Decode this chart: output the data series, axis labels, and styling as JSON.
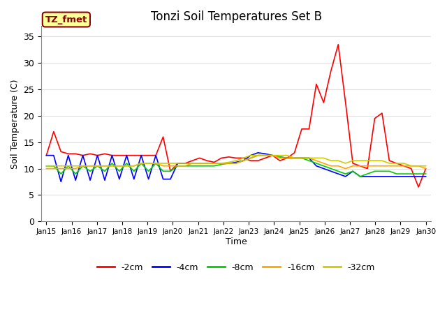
{
  "title": "Tonzi Soil Temperatures Set B",
  "xlabel": "Time",
  "ylabel": "Soil Temperature (C)",
  "annotation_text": "TZ_fmet",
  "annotation_color": "#8B0000",
  "annotation_bg": "#FFFF99",
  "ylim": [
    0,
    37
  ],
  "yticks": [
    0,
    5,
    10,
    15,
    20,
    25,
    30,
    35
  ],
  "bg_color": "#ffffff",
  "plot_bg": "#ffffff",
  "grid_color": "#E0E0E0",
  "series_colors": {
    "-2cm": "#FF0000",
    "-4cm": "#0000FF",
    "-8cm": "#00CC00",
    "-16cm": "#FFA500",
    "-32cm": "#CCCC00"
  },
  "xtick_labels": [
    "Jan 15",
    "Jan 16",
    "Jan 17",
    "Jan 18",
    "Jan 19",
    "Jan 20",
    "Jan 21",
    "Jan 22",
    "Jan 23",
    "Jan 24",
    "Jan 25",
    "Jan 26",
    "Jan 27",
    "Jan 28",
    "Jan 29",
    "Jan 30"
  ],
  "x_positions": [
    0,
    1,
    2,
    3,
    4,
    5,
    6,
    7,
    8,
    9,
    10,
    11,
    12,
    13,
    14,
    15
  ],
  "data": {
    "-2cm": [
      12.5,
      17.0,
      13.2,
      12.8,
      12.8,
      12.5,
      12.8,
      12.5,
      12.8,
      12.5,
      12.5,
      12.5,
      12.5,
      12.5,
      12.5,
      12.5,
      16.0,
      9.5,
      11.0,
      11.0,
      11.5,
      12.0,
      11.5,
      11.2,
      12.0,
      12.2,
      12.0,
      12.0,
      11.5,
      11.5,
      12.0,
      12.5,
      11.5,
      12.0,
      13.0,
      17.5,
      17.5,
      26.0,
      22.5,
      28.5,
      33.5,
      22.5,
      11.0,
      10.5,
      10.0,
      19.5,
      20.5,
      11.5,
      11.0,
      10.5,
      10.0,
      6.5,
      10.0
    ],
    "-4cm": [
      12.5,
      12.5,
      7.5,
      12.5,
      7.8,
      12.5,
      7.8,
      12.5,
      7.8,
      12.5,
      8.0,
      12.5,
      8.0,
      12.5,
      8.0,
      12.5,
      8.0,
      8.0,
      11.0,
      11.0,
      11.0,
      11.0,
      11.0,
      11.0,
      11.0,
      11.0,
      11.2,
      11.5,
      12.5,
      13.0,
      12.8,
      12.5,
      12.2,
      12.0,
      12.0,
      12.0,
      12.0,
      10.5,
      10.0,
      9.5,
      9.0,
      8.5,
      9.5,
      8.5,
      8.5,
      8.5,
      8.5,
      8.5,
      8.5,
      8.5,
      8.5,
      8.5,
      8.5
    ],
    "-8cm": [
      10.5,
      10.5,
      9.0,
      10.5,
      9.0,
      10.5,
      9.5,
      10.5,
      9.5,
      11.0,
      9.5,
      11.0,
      9.5,
      11.0,
      9.5,
      11.0,
      9.5,
      9.5,
      10.5,
      10.5,
      10.5,
      10.5,
      10.5,
      10.5,
      10.8,
      11.0,
      11.0,
      11.5,
      12.0,
      12.5,
      12.5,
      12.5,
      12.2,
      12.0,
      12.0,
      12.0,
      11.5,
      11.0,
      10.5,
      10.0,
      9.5,
      9.0,
      9.5,
      8.5,
      9.0,
      9.5,
      9.5,
      9.5,
      9.0,
      9.0,
      9.0,
      9.0,
      9.0
    ],
    "-16cm": [
      10.0,
      10.0,
      10.0,
      10.0,
      10.0,
      10.5,
      10.5,
      10.5,
      10.5,
      10.5,
      10.5,
      10.5,
      10.5,
      11.0,
      11.0,
      11.0,
      10.5,
      10.5,
      10.5,
      10.5,
      11.0,
      11.0,
      11.0,
      11.0,
      11.0,
      11.0,
      11.0,
      11.5,
      12.0,
      12.5,
      12.5,
      12.5,
      12.0,
      12.0,
      12.0,
      12.0,
      12.0,
      11.5,
      11.0,
      10.5,
      10.5,
      10.0,
      10.5,
      10.5,
      10.5,
      10.5,
      10.5,
      10.5,
      10.5,
      10.5,
      10.5,
      10.5,
      10.0
    ],
    "-32cm": [
      10.5,
      10.5,
      10.5,
      10.5,
      10.5,
      10.5,
      10.5,
      10.5,
      10.5,
      10.5,
      10.5,
      10.5,
      10.5,
      11.0,
      11.0,
      11.0,
      11.0,
      11.0,
      11.0,
      11.0,
      11.0,
      11.0,
      11.0,
      11.0,
      11.0,
      11.2,
      11.5,
      12.0,
      12.5,
      12.5,
      12.5,
      12.5,
      12.5,
      12.5,
      12.0,
      12.0,
      12.0,
      12.0,
      12.0,
      11.5,
      11.5,
      11.0,
      11.5,
      11.5,
      11.5,
      11.5,
      11.5,
      11.0,
      11.0,
      11.0,
      10.5,
      10.5,
      10.5
    ]
  }
}
